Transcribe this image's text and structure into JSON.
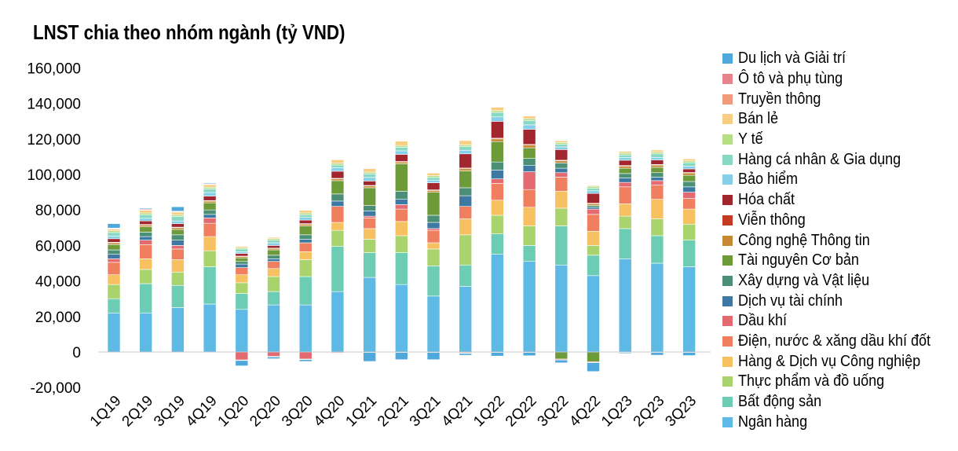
{
  "chart_data": {
    "type": "bar",
    "stacked": true,
    "title": "LNST chia theo nhóm ngành (tỷ VND)",
    "xlabel": "",
    "ylabel": "",
    "ylim": [
      -20000,
      160000
    ],
    "yticks": [
      -20000,
      0,
      20000,
      40000,
      60000,
      80000,
      100000,
      120000,
      140000,
      160000
    ],
    "ytick_labels": [
      "-20,000",
      "0",
      "20,000",
      "40,000",
      "60,000",
      "80,000",
      "100,000",
      "120,000",
      "140,000",
      "160,000"
    ],
    "legend_position": "right",
    "categories": [
      "1Q19",
      "2Q19",
      "3Q19",
      "4Q19",
      "1Q20",
      "2Q20",
      "3Q20",
      "4Q20",
      "1Q21",
      "2Q21",
      "3Q21",
      "4Q21",
      "1Q22",
      "2Q22",
      "3Q22",
      "4Q22",
      "1Q23",
      "2Q23",
      "3Q23"
    ],
    "series": [
      {
        "name": "Ngân hàng",
        "color": "#5EB9E5",
        "values": [
          22000,
          22000,
          25000,
          27000,
          24000,
          26500,
          26500,
          34000,
          42000,
          38000,
          31500,
          37000,
          55000,
          51000,
          49000,
          43000,
          52500,
          50000,
          48000
        ]
      },
      {
        "name": "Bất động sản",
        "color": "#6DCDB4",
        "values": [
          8000,
          16500,
          12500,
          21000,
          9000,
          7500,
          16000,
          25500,
          14000,
          18000,
          17000,
          12000,
          11500,
          9000,
          22000,
          11500,
          17000,
          15500,
          15000
        ]
      },
      {
        "name": "Thực phẩm và đồ uống",
        "color": "#A9D46D",
        "values": [
          8000,
          8000,
          7500,
          9000,
          6000,
          8500,
          9500,
          9000,
          7500,
          9500,
          9500,
          17000,
          10500,
          11000,
          10000,
          5500,
          7000,
          9500,
          9000
        ]
      },
      {
        "name": "Hàng & Dịch vụ Công nghiệp",
        "color": "#F7C060",
        "values": [
          5500,
          6000,
          7000,
          8000,
          4500,
          4500,
          4500,
          4500,
          6000,
          8000,
          3500,
          9000,
          8500,
          10500,
          9500,
          8000,
          7000,
          11000,
          8500
        ]
      },
      {
        "name": "Điện, nước & xăng dầu khí đốt",
        "color": "#EF7F5E",
        "values": [
          7000,
          8000,
          6000,
          7500,
          4000,
          4000,
          5000,
          9000,
          6000,
          7000,
          7000,
          7000,
          9500,
          10000,
          8000,
          9500,
          9500,
          8000,
          6000
        ]
      },
      {
        "name": "Dầu khí",
        "color": "#E26A70",
        "values": [
          2000,
          2500,
          2000,
          3000,
          -4500,
          -2500,
          -4000,
          -500,
          1000,
          2500,
          1000,
          -500,
          2500,
          10000,
          2500,
          3000,
          2500,
          2500,
          3500
        ]
      },
      {
        "name": "Dịch vụ tài chính",
        "color": "#3E79A3",
        "values": [
          2500,
          2000,
          3000,
          2000,
          2000,
          1500,
          2000,
          3000,
          3000,
          3000,
          3500,
          6000,
          5000,
          3500,
          2500,
          1000,
          2500,
          2000,
          3000
        ]
      },
      {
        "name": "Xây dựng và Vật liệu",
        "color": "#4B8F76",
        "values": [
          2500,
          2500,
          3000,
          2500,
          1500,
          2000,
          2500,
          4000,
          3000,
          4500,
          4000,
          4500,
          4500,
          4000,
          3000,
          1000,
          2500,
          2500,
          3000
        ]
      },
      {
        "name": "Tài nguyên Cơ bản",
        "color": "#6D9B3A",
        "values": [
          3000,
          3000,
          3000,
          4000,
          2000,
          3000,
          5000,
          7500,
          10000,
          15500,
          13000,
          9500,
          11500,
          6000,
          -4000,
          -5500,
          3000,
          3000,
          3500
        ]
      },
      {
        "name": "Công nghệ Thông tin",
        "color": "#C58A33",
        "values": [
          1000,
          1000,
          1000,
          1000,
          800,
          800,
          1000,
          1000,
          1000,
          1000,
          1000,
          1200,
          1500,
          1500,
          1200,
          1000,
          1200,
          1300,
          1300
        ]
      },
      {
        "name": "Viễn thông",
        "color": "#C23B22",
        "values": [
          300,
          300,
          300,
          300,
          200,
          200,
          300,
          300,
          300,
          300,
          300,
          400,
          400,
          400,
          300,
          300,
          300,
          300,
          300
        ]
      },
      {
        "name": "Hóa chất",
        "color": "#A1262D",
        "values": [
          2000,
          2000,
          2000,
          2500,
          1500,
          1500,
          2000,
          4000,
          2500,
          4000,
          4000,
          8000,
          9500,
          8500,
          6000,
          5500,
          3000,
          2500,
          2000
        ]
      },
      {
        "name": "Bảo hiểm",
        "color": "#85CFE8",
        "values": [
          1500,
          1500,
          1500,
          2000,
          1000,
          1500,
          1500,
          2000,
          2000,
          2000,
          1500,
          2000,
          2500,
          2500,
          1500,
          1500,
          1500,
          1500,
          1500
        ]
      },
      {
        "name": "Hàng cá nhân & Gia dụng",
        "color": "#88D9C4",
        "values": [
          2000,
          2000,
          2500,
          2000,
          1500,
          1500,
          1500,
          1500,
          2000,
          2000,
          1500,
          2000,
          2500,
          2500,
          1500,
          1500,
          1500,
          2000,
          2000
        ]
      },
      {
        "name": "Y tế",
        "color": "#B5DE86",
        "values": [
          1000,
          1000,
          1000,
          1000,
          800,
          900,
          1000,
          1000,
          1000,
          1000,
          1000,
          1000,
          1000,
          1000,
          1000,
          1000,
          1000,
          1000,
          1000
        ]
      },
      {
        "name": "Bán lẻ",
        "color": "#F8CF82",
        "values": [
          1000,
          1500,
          1500,
          1500,
          800,
          800,
          1500,
          2000,
          2000,
          2500,
          1500,
          2500,
          2000,
          1500,
          1000,
          500,
          1000,
          1200,
          1200
        ]
      },
      {
        "name": "Truyền thông",
        "color": "#F19B7C",
        "values": [
          200,
          200,
          200,
          200,
          100,
          100,
          200,
          200,
          200,
          200,
          200,
          200,
          200,
          200,
          200,
          200,
          200,
          200,
          200
        ]
      },
      {
        "name": "Ô tô và phụ tùng",
        "color": "#E8838B",
        "values": [
          300,
          500,
          300,
          300,
          -300,
          -300,
          -300,
          -300,
          -300,
          -300,
          -300,
          -300,
          -300,
          -300,
          -500,
          -500,
          -300,
          -300,
          -300
        ]
      },
      {
        "name": "Du lịch và Giải trí",
        "color": "#4FA8DC",
        "values": [
          2500,
          500,
          2500,
          500,
          -3000,
          -1000,
          -1000,
          -300,
          -5000,
          -4000,
          -4000,
          -1000,
          -2000,
          -1800,
          -1600,
          -5000,
          -500,
          -1500,
          -1700
        ]
      }
    ]
  }
}
